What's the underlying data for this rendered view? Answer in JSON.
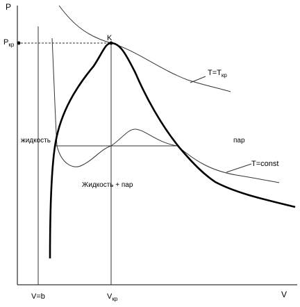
{
  "axes": {
    "y_label": "P",
    "x_label": "V"
  },
  "labels": {
    "p_crit": {
      "main": "P",
      "sub": "кр"
    },
    "critical_point": "K",
    "critical_isotherm": {
      "main": "T=T",
      "sub": "кр"
    },
    "liquid": "жидкость",
    "vapor": "пар",
    "isotherm": "T=const",
    "two_phase": "Жидкость + пар",
    "v_b": "V=b",
    "v_crit": {
      "main": "V",
      "sub": "кр"
    }
  }
}
